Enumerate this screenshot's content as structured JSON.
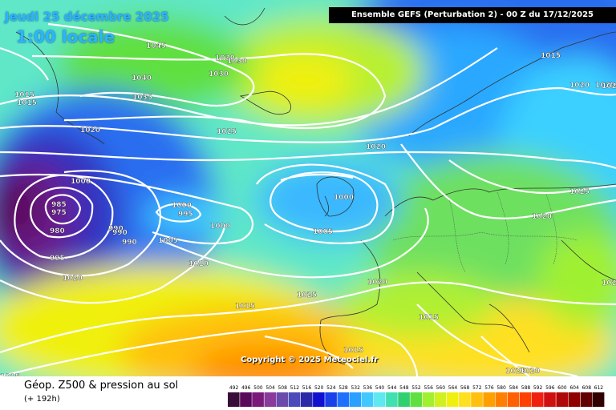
{
  "header": {
    "date": "Jeudi 25 décembre 2025",
    "time": "1:00 locale",
    "model": "Ensemble GEFS  (Perturbation 2)  -  00 Z du 17/12/2025"
  },
  "copyright": "Copyright © 2025 Meteociel.fr",
  "footer": {
    "title": "Géop. Z500 & pression au sol",
    "subtitle": "(+ 192h)"
  },
  "isobars": [
    {
      "x": "1045"
    },
    {
      "x": "1040"
    },
    {
      "x": "1035"
    },
    {
      "x": "1030"
    },
    {
      "x": "1030"
    },
    {
      "x": "1030"
    },
    {
      "x": "1025"
    },
    {
      "x": "1020"
    },
    {
      "x": "1020"
    },
    {
      "x": "1020"
    },
    {
      "x": "1020"
    },
    {
      "x": "1020"
    },
    {
      "x": "1015"
    },
    {
      "x": "1015"
    },
    {
      "x": "1015"
    },
    {
      "x": "1015"
    },
    {
      "x": "1015"
    },
    {
      "x": "1015"
    },
    {
      "x": "1000"
    },
    {
      "x": "1000"
    },
    {
      "x": "995"
    },
    {
      "x": "1000"
    },
    {
      "x": "1000"
    },
    {
      "x": "1005"
    },
    {
      "x": "1005"
    },
    {
      "x": "1010"
    },
    {
      "x": "985"
    },
    {
      "x": "975"
    },
    {
      "x": "980"
    },
    {
      "x": "990"
    },
    {
      "x": "990"
    },
    {
      "x": "990"
    },
    {
      "x": "995"
    },
    {
      "x": "1020"
    },
    {
      "x": "1025"
    },
    {
      "x": "1025"
    },
    {
      "x": "1020"
    },
    {
      "x": "1015"
    },
    {
      "x": "1025"
    },
    {
      "x": "1020"
    },
    {
      "x": "1020"
    },
    {
      "x": "1020"
    }
  ],
  "legend": {
    "labels": [
      "492",
      "496",
      "500",
      "504",
      "508",
      "512",
      "516",
      "520",
      "524",
      "528",
      "532",
      "536",
      "540",
      "544",
      "548",
      "552",
      "556",
      "560",
      "564",
      "568",
      "572",
      "576",
      "580",
      "584",
      "588",
      "592",
      "596",
      "600",
      "604",
      "608",
      "612"
    ],
    "colors": [
      "#3a0a3a",
      "#5a0a5a",
      "#7a1a7a",
      "#8a3a9a",
      "#6a4aaa",
      "#4a4aba",
      "#2a2aa8",
      "#1010d0",
      "#1a40e8",
      "#2070ff",
      "#2aa0ff",
      "#40c8ff",
      "#60e8f0",
      "#40e0b0",
      "#30d070",
      "#60e040",
      "#a0f030",
      "#d0f020",
      "#f0f010",
      "#ffe020",
      "#ffc010",
      "#ffa000",
      "#ff8000",
      "#ff6000",
      "#ff4000",
      "#f02010",
      "#d01010",
      "#b00808",
      "#900000",
      "#600000",
      "#300000"
    ]
  }
}
